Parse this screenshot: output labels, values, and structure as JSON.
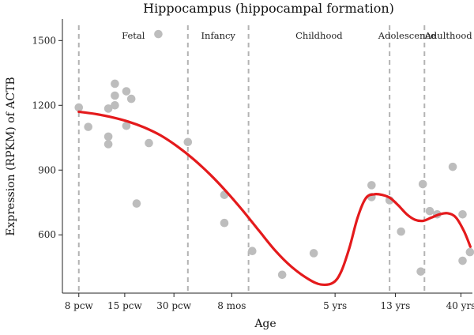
{
  "chart_data": {
    "type": "scatter",
    "title": "Hippocampus (hippocampal formation)",
    "xlabel": "Age",
    "ylabel": "Expression (RPKM) of ACTB",
    "x_scale": "developmental age (ordinal ticks)",
    "xlim": [
      0,
      100
    ],
    "ylim": [
      330,
      1600
    ],
    "yticks": [
      600,
      900,
      1200,
      1500
    ],
    "xticks": [
      {
        "label": "8 pcw",
        "x": 4
      },
      {
        "label": "15 pcw",
        "x": 15.2
      },
      {
        "label": "30 pcw",
        "x": 27.2
      },
      {
        "label": "8 mos",
        "x": 41.3
      },
      {
        "label": "5 yrs",
        "x": 66.5
      },
      {
        "label": "13 yrs",
        "x": 81.2
      },
      {
        "label": "40 yrs",
        "x": 97.2
      }
    ],
    "stages": [
      {
        "label": "Fetal",
        "start": 4,
        "end": 30.6
      },
      {
        "label": "Infancy",
        "start": 30.6,
        "end": 45.4
      },
      {
        "label": "Childhood",
        "start": 45.4,
        "end": 79.8
      },
      {
        "label": "Adolescence",
        "start": 79.8,
        "end": 88.3
      },
      {
        "label": "Adulthood",
        "start": 88.3,
        "end": 100
      }
    ],
    "series": [
      {
        "type": "scatter",
        "color": "#bdbdbd",
        "points": [
          {
            "x": 4,
            "y": 1190
          },
          {
            "x": 6.3,
            "y": 1100
          },
          {
            "x": 11.2,
            "y": 1185
          },
          {
            "x": 11.2,
            "y": 1055
          },
          {
            "x": 11.2,
            "y": 1020
          },
          {
            "x": 12.8,
            "y": 1300
          },
          {
            "x": 12.8,
            "y": 1245
          },
          {
            "x": 12.8,
            "y": 1200
          },
          {
            "x": 15.6,
            "y": 1265
          },
          {
            "x": 15.6,
            "y": 1105
          },
          {
            "x": 16.8,
            "y": 1230
          },
          {
            "x": 18.1,
            "y": 745
          },
          {
            "x": 21.1,
            "y": 1025
          },
          {
            "x": 23.4,
            "y": 1530
          },
          {
            "x": 30.6,
            "y": 1030
          },
          {
            "x": 39.5,
            "y": 785
          },
          {
            "x": 39.5,
            "y": 655
          },
          {
            "x": 46.3,
            "y": 525
          },
          {
            "x": 53.6,
            "y": 415
          },
          {
            "x": 61.3,
            "y": 515
          },
          {
            "x": 75.4,
            "y": 830
          },
          {
            "x": 75.4,
            "y": 775
          },
          {
            "x": 79.8,
            "y": 760
          },
          {
            "x": 82.6,
            "y": 615
          },
          {
            "x": 87.4,
            "y": 430
          },
          {
            "x": 87.9,
            "y": 835
          },
          {
            "x": 89.6,
            "y": 710
          },
          {
            "x": 91.4,
            "y": 695
          },
          {
            "x": 95.2,
            "y": 915
          },
          {
            "x": 97.6,
            "y": 695
          },
          {
            "x": 97.6,
            "y": 480
          },
          {
            "x": 99.4,
            "y": 520
          }
        ]
      },
      {
        "type": "line",
        "color": "#e41a1c",
        "points": [
          {
            "x": 4,
            "y": 1170
          },
          {
            "x": 8,
            "y": 1160
          },
          {
            "x": 12,
            "y": 1145
          },
          {
            "x": 16,
            "y": 1125
          },
          {
            "x": 20,
            "y": 1097
          },
          {
            "x": 24,
            "y": 1060
          },
          {
            "x": 28,
            "y": 1010
          },
          {
            "x": 32,
            "y": 950
          },
          {
            "x": 36,
            "y": 880
          },
          {
            "x": 40,
            "y": 800
          },
          {
            "x": 44,
            "y": 712
          },
          {
            "x": 48,
            "y": 618
          },
          {
            "x": 52,
            "y": 525
          },
          {
            "x": 56,
            "y": 450
          },
          {
            "x": 60,
            "y": 395
          },
          {
            "x": 63,
            "y": 370
          },
          {
            "x": 66,
            "y": 378
          },
          {
            "x": 68,
            "y": 430
          },
          {
            "x": 70,
            "y": 540
          },
          {
            "x": 72,
            "y": 680
          },
          {
            "x": 74,
            "y": 770
          },
          {
            "x": 76,
            "y": 788
          },
          {
            "x": 78,
            "y": 785
          },
          {
            "x": 80,
            "y": 770
          },
          {
            "x": 82,
            "y": 735
          },
          {
            "x": 84,
            "y": 695
          },
          {
            "x": 86,
            "y": 670
          },
          {
            "x": 88,
            "y": 665
          },
          {
            "x": 90,
            "y": 680
          },
          {
            "x": 92,
            "y": 695
          },
          {
            "x": 94,
            "y": 700
          },
          {
            "x": 96,
            "y": 680
          },
          {
            "x": 98,
            "y": 615
          },
          {
            "x": 99.5,
            "y": 545
          }
        ]
      }
    ]
  }
}
